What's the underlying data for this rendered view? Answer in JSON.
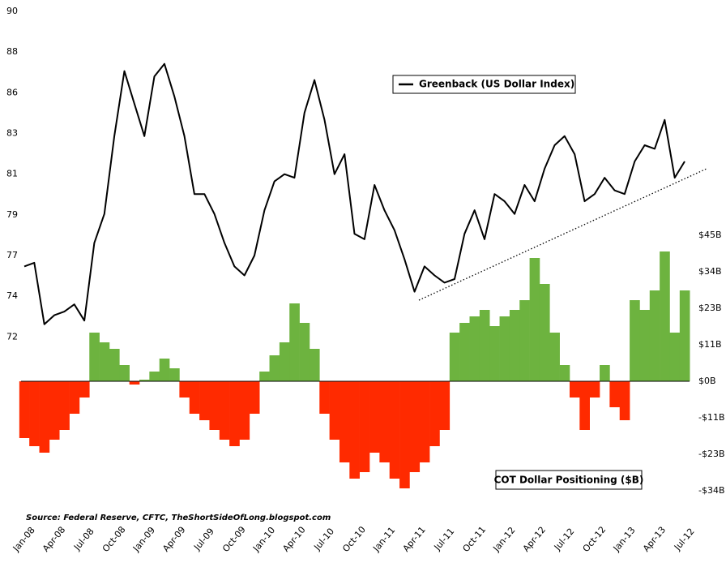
{
  "chart_data": {
    "type": "combo",
    "source": "Source: Federal Reserve, CFTC, TheShortSideOfLong.blogspot.com",
    "categories": [
      "Jan-08",
      null,
      null,
      "Apr-08",
      null,
      null,
      "Jul-08",
      null,
      null,
      "Oct-08",
      null,
      null,
      "Jan-09",
      null,
      null,
      "Apr-09",
      null,
      null,
      "Jul-09",
      null,
      null,
      "Oct-09",
      null,
      null,
      "Jan-10",
      null,
      null,
      "Apr-10",
      null,
      null,
      "Jul-10",
      null,
      null,
      "Oct-10",
      null,
      null,
      "Jan-11",
      null,
      null,
      "Apr-11",
      null,
      null,
      "Jul-11",
      null,
      null,
      "Oct-11",
      null,
      null,
      "Jan-12",
      null,
      null,
      "Apr-12",
      null,
      null,
      "Jul-12",
      null,
      null,
      "Oct-12",
      null,
      null,
      "Jan-13",
      null,
      null,
      "Apr-13",
      null,
      null,
      "Jul-12"
    ],
    "series": [
      {
        "name": "Greenback (US Dollar Index)",
        "type": "line",
        "color": "#000000",
        "values": [
          75.9,
          76.1,
          72.7,
          73.2,
          73.4,
          73.8,
          72.9,
          77.2,
          78.8,
          83.1,
          86.7,
          84.9,
          83.1,
          86.4,
          87.1,
          85.3,
          83.1,
          79.9,
          79.9,
          78.8,
          77.2,
          75.9,
          75.4,
          76.5,
          79.0,
          80.6,
          81.0,
          80.8,
          84.4,
          86.2,
          84.0,
          81.0,
          82.1,
          77.7,
          77.4,
          80.4,
          79.0,
          77.9,
          76.3,
          74.5,
          75.9,
          75.4,
          75.0,
          75.2,
          77.7,
          79.0,
          77.4,
          79.9,
          79.5,
          78.8,
          80.4,
          79.5,
          81.3,
          82.6,
          83.1,
          82.1,
          79.5,
          79.9,
          80.8,
          80.1,
          79.9,
          81.7,
          82.6,
          82.4,
          84.0,
          80.8,
          81.7
        ]
      },
      {
        "name": "COT Dollar Positioning ($B)",
        "type": "bar",
        "axis": "y2",
        "positive_color": "#6db33f",
        "negative_color": "#ff2a00",
        "values": [
          -17.5,
          -20,
          -22,
          -18,
          -15,
          -10,
          -5,
          15,
          12,
          10,
          5,
          -1,
          0.5,
          3,
          7,
          4,
          -5,
          -10,
          -12,
          -15,
          -18,
          -20,
          -18,
          -10,
          3,
          8,
          12,
          24,
          18,
          10,
          -10,
          -18,
          -25,
          -30,
          -28,
          -22,
          -25,
          -30,
          -33,
          -28,
          -25,
          -20,
          -15,
          15,
          18,
          20,
          22,
          17,
          20,
          22,
          25,
          38,
          30,
          15,
          5,
          -5,
          -15,
          -5,
          5,
          -8,
          -12,
          25,
          22,
          28,
          40,
          15,
          28
        ]
      }
    ],
    "ylim": [
      62.46,
      90
    ],
    "yticks": [
      90,
      {
        "value": 87.75,
        "label": "88"
      },
      {
        "value": 85.5,
        "label": "86"
      },
      {
        "value": 83.25,
        "label": "83"
      },
      81,
      {
        "value": 78.75,
        "label": "79"
      },
      {
        "value": 76.5,
        "label": "77"
      },
      {
        "value": 74.25,
        "label": "74"
      },
      72
    ],
    "y2lim": [
      -39.5,
      114
    ],
    "y2ticks": [
      {
        "value": 45,
        "label": "$45B"
      },
      {
        "value": 33.75,
        "label": "$34B"
      },
      {
        "value": 22.5,
        "label": "$23B"
      },
      {
        "value": 11.25,
        "label": "$11B"
      },
      {
        "value": 0,
        "label": "$0B"
      },
      {
        "value": -11.25,
        "label": "-$11B"
      },
      {
        "value": -22.5,
        "label": "-$23B"
      },
      {
        "value": -33.75,
        "label": "-$34B"
      }
    ]
  }
}
